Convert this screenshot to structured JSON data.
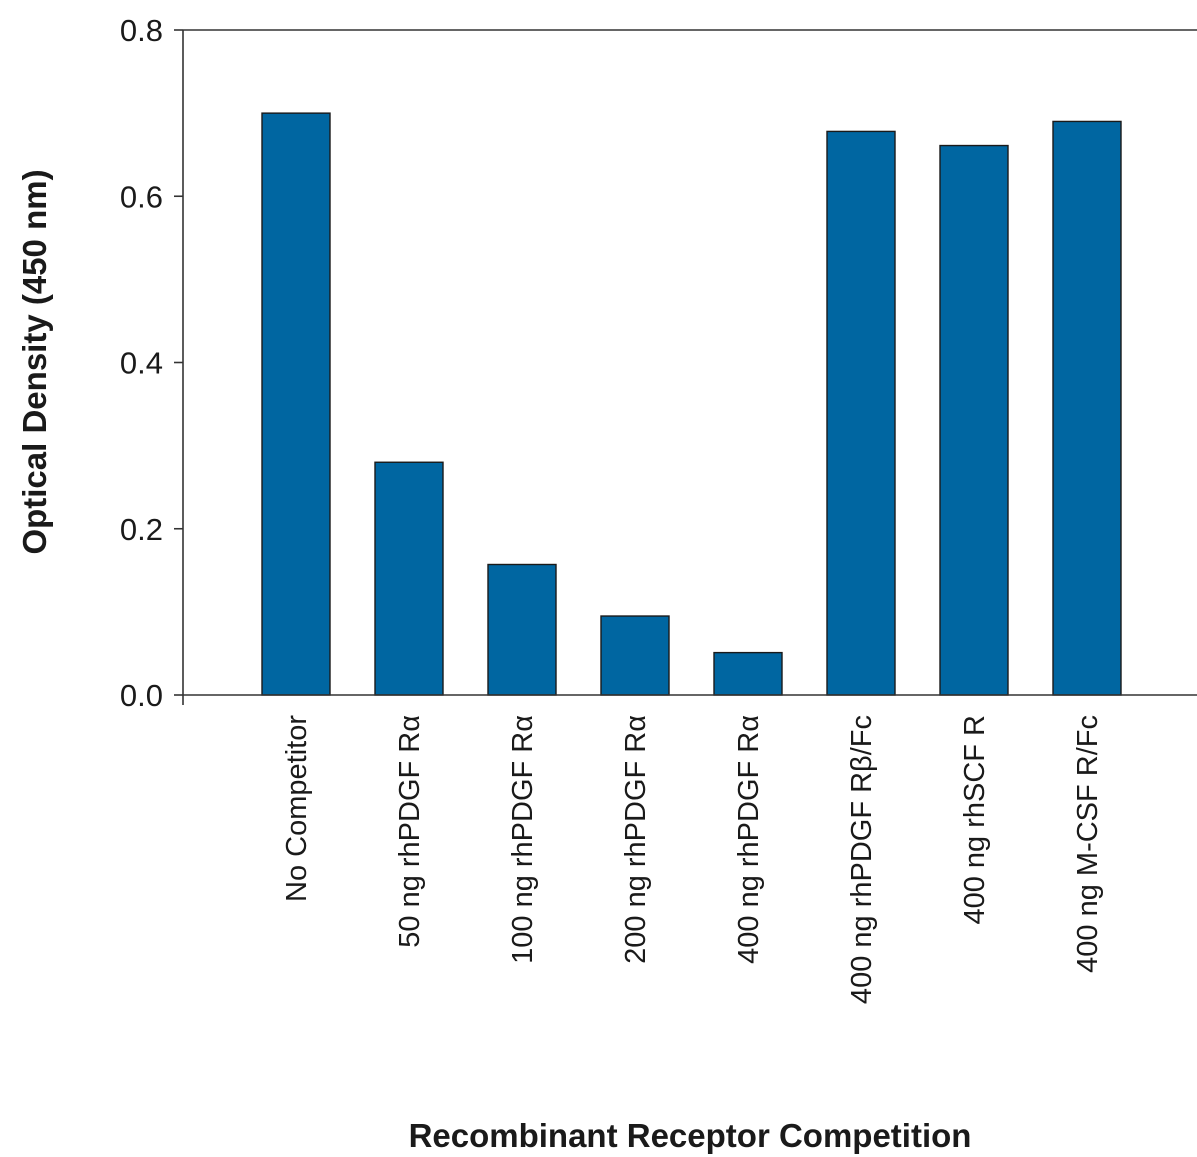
{
  "chart_data": {
    "type": "bar",
    "categories": [
      "No Competitor",
      "50 ng rhPDGF Rα",
      "100 ng rhPDGF Rα",
      "200 ng rhPDGF Rα",
      "400 ng rhPDGF Rα",
      "400 ng rhPDGF Rβ/Fc",
      "400 ng rhSCF R",
      "400 ng M-CSF R/Fc"
    ],
    "values": [
      0.7,
      0.28,
      0.157,
      0.095,
      0.051,
      0.678,
      0.661,
      0.69
    ],
    "title": "",
    "xlabel": "Recombinant Receptor Competition",
    "ylabel": "Optical Density (450 nm)",
    "ylim": [
      0,
      0.8
    ],
    "yticks": [
      "0.0",
      "0.2",
      "0.4",
      "0.6",
      "0.8"
    ],
    "bar_color": "#0066a1",
    "grid": false,
    "legend": "none"
  }
}
